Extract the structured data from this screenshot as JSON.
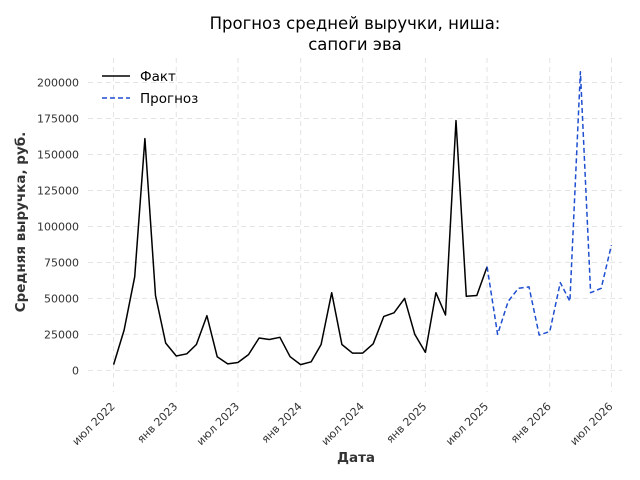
{
  "chart_data": {
    "type": "line",
    "title_lines": [
      "Прогноз средней выручки, ниша:",
      "сапоги эва"
    ],
    "xlabel": "Дата",
    "ylabel": "Средняя выручка, руб.",
    "legend_position": "top-left",
    "grid": true,
    "ylim": [
      -15000,
      217000
    ],
    "xlim": [
      "2022-04-17",
      "2026-08-01"
    ],
    "yticks": [
      0,
      25000,
      50000,
      75000,
      100000,
      125000,
      150000,
      175000,
      200000
    ],
    "xticks": [
      {
        "date": "2022-07-01",
        "label": "июл 2022"
      },
      {
        "date": "2023-01-01",
        "label": "янв 2023"
      },
      {
        "date": "2023-07-01",
        "label": "июл 2023"
      },
      {
        "date": "2024-01-01",
        "label": "янв 2024"
      },
      {
        "date": "2024-07-01",
        "label": "июл 2024"
      },
      {
        "date": "2025-01-01",
        "label": "янв 2025"
      },
      {
        "date": "2025-07-01",
        "label": "июл 2025"
      },
      {
        "date": "2026-01-01",
        "label": "янв 2026"
      },
      {
        "date": "2026-07-01",
        "label": "июл 2026"
      }
    ],
    "series": [
      {
        "name": "Факт",
        "color": "#000000",
        "dash": "solid",
        "points": [
          [
            "2022-07-01",
            4000
          ],
          [
            "2022-08-01",
            28000
          ],
          [
            "2022-09-01",
            65000
          ],
          [
            "2022-10-01",
            161000
          ],
          [
            "2022-11-01",
            52000
          ],
          [
            "2022-12-01",
            19000
          ],
          [
            "2023-01-01",
            10000
          ],
          [
            "2023-02-01",
            11500
          ],
          [
            "2023-03-01",
            18000
          ],
          [
            "2023-04-01",
            38000
          ],
          [
            "2023-05-01",
            9500
          ],
          [
            "2023-06-01",
            4500
          ],
          [
            "2023-07-01",
            5500
          ],
          [
            "2023-08-01",
            11000
          ],
          [
            "2023-09-01",
            22500
          ],
          [
            "2023-10-01",
            21500
          ],
          [
            "2023-11-01",
            23000
          ],
          [
            "2023-12-01",
            9500
          ],
          [
            "2024-01-01",
            4000
          ],
          [
            "2024-02-01",
            6000
          ],
          [
            "2024-03-01",
            18000
          ],
          [
            "2024-04-01",
            54000
          ],
          [
            "2024-05-01",
            18000
          ],
          [
            "2024-06-01",
            12000
          ],
          [
            "2024-07-01",
            12000
          ],
          [
            "2024-08-01",
            18500
          ],
          [
            "2024-09-01",
            37500
          ],
          [
            "2024-10-01",
            40000
          ],
          [
            "2024-11-01",
            50000
          ],
          [
            "2024-12-01",
            25000
          ],
          [
            "2025-01-01",
            12500
          ],
          [
            "2025-02-01",
            54000
          ],
          [
            "2025-03-01",
            38500
          ],
          [
            "2025-04-01",
            173500
          ],
          [
            "2025-05-01",
            51500
          ],
          [
            "2025-06-01",
            52000
          ],
          [
            "2025-07-01",
            72000
          ]
        ]
      },
      {
        "name": "Прогноз",
        "color": "#1f4fd1",
        "dash": "dashed",
        "points": [
          [
            "2025-07-01",
            72000
          ],
          [
            "2025-08-01",
            25000
          ],
          [
            "2025-09-01",
            48000
          ],
          [
            "2025-10-01",
            57000
          ],
          [
            "2025-11-01",
            58000
          ],
          [
            "2025-12-01",
            24500
          ],
          [
            "2026-01-01",
            27000
          ],
          [
            "2026-02-01",
            61000
          ],
          [
            "2026-03-01",
            48000
          ],
          [
            "2026-04-01",
            207500
          ],
          [
            "2026-05-01",
            54000
          ],
          [
            "2026-06-01",
            57000
          ],
          [
            "2026-07-01",
            87000
          ]
        ]
      }
    ]
  }
}
